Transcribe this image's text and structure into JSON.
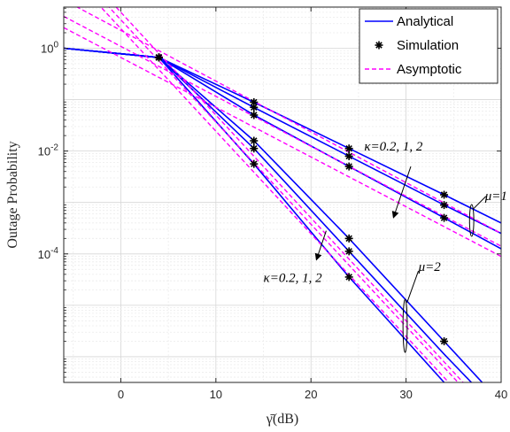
{
  "chart_data": {
    "type": "line",
    "xlabel": "γ̄(dB)",
    "ylabel": "Outage Probability",
    "xlim": [
      -6,
      40
    ],
    "ylim_log10": [
      -6.5,
      0.8
    ],
    "y_scale": "log",
    "grid": true,
    "legend_position": "top-right",
    "x_ticks": [
      {
        "value": 0,
        "label": "0"
      },
      {
        "value": 10,
        "label": "10"
      },
      {
        "value": 20,
        "label": "20"
      },
      {
        "value": 30,
        "label": "30"
      },
      {
        "value": 40,
        "label": "40"
      }
    ],
    "y_ticks": [
      {
        "exp": 0,
        "base": "10",
        "sup": "0"
      },
      {
        "exp": -2,
        "base": "10",
        "sup": "-2"
      },
      {
        "exp": -4,
        "base": "10",
        "sup": "-4"
      }
    ],
    "legend": [
      {
        "label": "Analytical",
        "style": "solid",
        "color": "#0000ff"
      },
      {
        "label": "Simulation",
        "style": "marker",
        "color": "#000000"
      },
      {
        "label": "Asymptotic",
        "style": "dashed",
        "color": "#ff00ff"
      }
    ],
    "annotations": [
      {
        "text": "κ=0.2, 1, 2",
        "at": [
          25.6,
          -1.99
        ]
      },
      {
        "text": "κ=0.2, 1, 2",
        "at": [
          15.0,
          -4.55
        ]
      },
      {
        "text": "μ=1",
        "at": [
          38.3,
          -2.95
        ]
      },
      {
        "text": "μ=2",
        "at": [
          31.3,
          -4.33
        ]
      }
    ],
    "series": [
      {
        "name": "Analytical",
        "x": [
          -6,
          4,
          14,
          24,
          34,
          40
        ],
        "y_log10": [
          0.0,
          -0.18,
          -1.05,
          -1.95,
          -2.85,
          -3.4
        ]
      },
      {
        "name": "Analytical",
        "x": [
          -6,
          4,
          14,
          24,
          34,
          40
        ],
        "y_log10": [
          0.0,
          -0.18,
          -1.15,
          -2.1,
          -3.05,
          -3.6
        ]
      },
      {
        "name": "Analytical",
        "x": [
          -6,
          4,
          14,
          24,
          34,
          40
        ],
        "y_log10": [
          0.0,
          -0.18,
          -1.3,
          -2.3,
          -3.3,
          -3.9
        ]
      },
      {
        "name": "Analytical",
        "x": [
          -6,
          4,
          14,
          24,
          34,
          40
        ],
        "y_log10": [
          0.0,
          -0.18,
          -1.8,
          -3.7,
          -5.7,
          -6.9
        ]
      },
      {
        "name": "Analytical",
        "x": [
          -6,
          4,
          14,
          24,
          34,
          40
        ],
        "y_log10": [
          0.0,
          -0.18,
          -1.95,
          -3.95,
          -5.95,
          -7.1
        ]
      },
      {
        "name": "Analytical",
        "x": [
          -6,
          4,
          14,
          24,
          34,
          40
        ],
        "y_log10": [
          0.0,
          -0.18,
          -2.25,
          -4.45,
          -6.5,
          -7.7
        ]
      },
      {
        "name": "Asymptotic",
        "x": [
          -6,
          40
        ],
        "y_log10": [
          0.94,
          -3.6
        ]
      },
      {
        "name": "Asymptotic",
        "x": [
          -6,
          40
        ],
        "y_log10": [
          0.62,
          -3.85
        ]
      },
      {
        "name": "Asymptotic",
        "x": [
          -6,
          40
        ],
        "y_log10": [
          0.4,
          -4.05
        ]
      },
      {
        "name": "Asymptotic",
        "x": [
          -1,
          40
        ],
        "y_log10": [
          0.9,
          -7.3
        ]
      },
      {
        "name": "Asymptotic",
        "x": [
          -2,
          40
        ],
        "y_log10": [
          0.95,
          -7.4
        ]
      },
      {
        "name": "Asymptotic",
        "x": [
          -3,
          40
        ],
        "y_log10": [
          0.98,
          -7.6
        ]
      },
      {
        "name": "Simulation",
        "x": [
          4,
          14,
          24,
          34
        ],
        "y_log10": [
          -0.18,
          -1.05,
          -1.95,
          -2.85
        ]
      },
      {
        "name": "Simulation",
        "x": [
          4,
          14,
          24,
          34
        ],
        "y_log10": [
          -0.18,
          -1.15,
          -2.1,
          -3.05
        ]
      },
      {
        "name": "Simulation",
        "x": [
          4,
          14,
          24,
          34
        ],
        "y_log10": [
          -0.18,
          -1.3,
          -2.3,
          -3.3
        ]
      },
      {
        "name": "Simulation",
        "x": [
          4,
          14,
          24,
          34
        ],
        "y_log10": [
          -0.18,
          -1.8,
          -3.7,
          -5.7
        ]
      },
      {
        "name": "Simulation",
        "x": [
          4,
          14,
          24
        ],
        "y_log10": [
          -0.18,
          -1.95,
          -3.95
        ]
      },
      {
        "name": "Simulation",
        "x": [
          4,
          14,
          24
        ],
        "y_log10": [
          -0.18,
          -2.25,
          -4.45
        ]
      }
    ]
  }
}
